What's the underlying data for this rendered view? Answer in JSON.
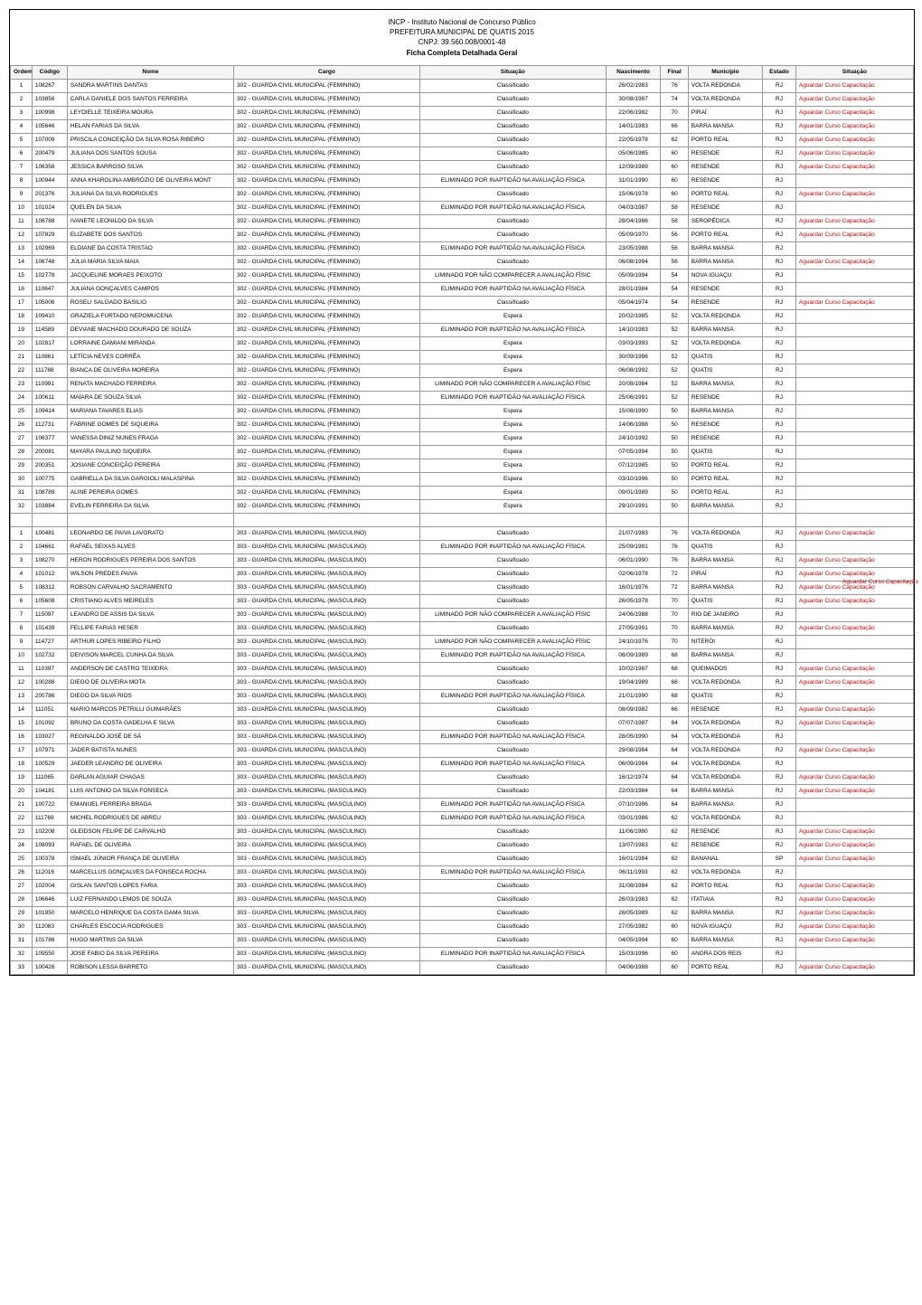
{
  "header": {
    "line1": "INCP - Instituto Nacional de Concurso Público",
    "line2": "PREFEITURA MUNICIPAL DE QUATIS 2015",
    "line3": "CNPJ: 39.560.008/0001-48",
    "line4": "Ficha Completa Detalhada Geral"
  },
  "side_note": "Aguardar Curso Capacitação",
  "columns": [
    "Ordem",
    "Código",
    "Nome",
    "Cargo",
    "Situação",
    "Nascimento",
    "Final",
    "Município",
    "Estado",
    "Situação"
  ],
  "cargo_f": "302 - GUARDA CIVIL MUNICIPAL (FEMININO)",
  "cargo_m": "303 - GUARDA CIVIL MUNICIPAL (MASCULINO)",
  "sit_class": "Classificado",
  "sit_espera": "Espera",
  "sit_elim_inapt": "ELIMINADO POR INAPTIDÃO NA AVALIAÇÃO FÍSICA",
  "sit_elim_nao_comp": "LIMINADO POR NÃO COMPARECER A AVALIAÇÃO FÍSIC",
  "aguardar": "Aguardar Curso Capacitação",
  "rows_f": [
    {
      "o": "1",
      "c": "108267",
      "n": "SANDRA MARTINS DANTAS",
      "s": "class",
      "d": "26/02/1983",
      "f": "76",
      "m": "VOLTA REDONDA",
      "e": "RJ",
      "s2": true
    },
    {
      "o": "2",
      "c": "103856",
      "n": "CARLA DANIELE DOS SANTOS FERREIRA",
      "s": "class",
      "d": "30/08/1987",
      "f": "74",
      "m": "VOLTA REDONDA",
      "e": "RJ",
      "s2": true
    },
    {
      "o": "3",
      "c": "100998",
      "n": "LEYDIELLE TEIXEIRA MOURA",
      "s": "class",
      "d": "22/06/1982",
      "f": "70",
      "m": "PIRAÍ",
      "e": "RJ",
      "s2": true
    },
    {
      "o": "4",
      "c": "105646",
      "n": "HELAN FARIAS DA SILVA",
      "s": "class",
      "d": "14/01/1983",
      "f": "66",
      "m": "BARRA MANSA",
      "e": "RJ",
      "s2": true
    },
    {
      "o": "5",
      "c": "107009",
      "n": "PRISCILA CONCEIÇÃO DA SILVA ROSA RIBEIRO",
      "s": "class",
      "d": "22/05/1978",
      "f": "62",
      "m": "PORTO REAL",
      "e": "RJ",
      "s2": true
    },
    {
      "o": "6",
      "c": "200479",
      "n": "JULIANA DOS SANTOS SOUSA",
      "s": "class",
      "d": "05/06/1985",
      "f": "60",
      "m": "RESENDE",
      "e": "RJ",
      "s2": true
    },
    {
      "o": "7",
      "c": "106358",
      "n": "JESSICA BARROSO SILVA",
      "s": "class",
      "d": "12/09/1989",
      "f": "60",
      "m": "RESENDE",
      "e": "RJ",
      "s2": true
    },
    {
      "o": "8",
      "c": "100944",
      "n": "ANNA KHAROLINA AMBRÓZIO DE OLIVEIRA MONT",
      "s": "elim_inapt",
      "d": "31/01/1990",
      "f": "60",
      "m": "RESENDE",
      "e": "RJ",
      "s2": false
    },
    {
      "o": "9",
      "c": "201376",
      "n": "JULIANA DA SILVA RODRIGUES",
      "s": "class",
      "d": "15/06/1978",
      "f": "60",
      "m": "PORTO REAL",
      "e": "RJ",
      "s2": true
    },
    {
      "o": "10",
      "c": "101024",
      "n": "QUELEN DA SILVA",
      "s": "elim_inapt",
      "d": "04/03/1987",
      "f": "58",
      "m": "RESENDE",
      "e": "RJ",
      "s2": false
    },
    {
      "o": "11",
      "c": "108788",
      "n": "IVANETE LEONILDO DA SILVA",
      "s": "class",
      "d": "28/04/1986",
      "f": "58",
      "m": "SEROPÉDICA",
      "e": "RJ",
      "s2": true
    },
    {
      "o": "12",
      "c": "107829",
      "n": "ELIZABETE DOS SANTOS",
      "s": "class",
      "d": "05/09/1970",
      "f": "56",
      "m": "PORTO REAL",
      "e": "RJ",
      "s2": true
    },
    {
      "o": "13",
      "c": "102969",
      "n": "ELDIANE DA COSTA TRISTAO",
      "s": "elim_inapt",
      "d": "23/05/1988",
      "f": "56",
      "m": "BARRA MANSA",
      "e": "RJ",
      "s2": false
    },
    {
      "o": "14",
      "c": "106748",
      "n": "JÚLIA MARIA SILVA MAIA",
      "s": "class",
      "d": "06/08/1994",
      "f": "56",
      "m": "BARRA MANSA",
      "e": "RJ",
      "s2": true
    },
    {
      "o": "15",
      "c": "102778",
      "n": "JACQUELINE MORAES PEIXOTO",
      "s": "elim_nao",
      "d": "05/09/1994",
      "f": "54",
      "m": "NOVA IGUAÇU",
      "e": "RJ",
      "s2": false
    },
    {
      "o": "16",
      "c": "110647",
      "n": "JULIANA GONÇALVES CAMPOS",
      "s": "elim_inapt",
      "d": "28/01/1984",
      "f": "54",
      "m": "RESENDE",
      "e": "RJ",
      "s2": false
    },
    {
      "o": "17",
      "c": "105006",
      "n": "ROSELI SALGADO BASILIO",
      "s": "class",
      "d": "05/04/1974",
      "f": "54",
      "m": "RESENDE",
      "e": "RJ",
      "s2": true
    },
    {
      "o": "18",
      "c": "109410",
      "n": "GRAZIELA FURTADO NEPOMUCENA",
      "s": "espera",
      "d": "20/02/1985",
      "f": "52",
      "m": "VOLTA REDONDA",
      "e": "RJ",
      "s2": false
    },
    {
      "o": "19",
      "c": "114589",
      "n": "DEVIANE MACHADO DOURADO DE SOUZA",
      "s": "elim_inapt",
      "d": "14/10/1983",
      "f": "52",
      "m": "BARRA MANSA",
      "e": "RJ",
      "s2": false
    },
    {
      "o": "20",
      "c": "102817",
      "n": "LORRAINE DAMIANI MIRANDA",
      "s": "espera",
      "d": "03/03/1993",
      "f": "52",
      "m": "VOLTA REDONDA",
      "e": "RJ",
      "s2": false
    },
    {
      "o": "21",
      "c": "110861",
      "n": "LETÍCIA NEVES CORRÊA",
      "s": "espera",
      "d": "30/09/1996",
      "f": "52",
      "m": "QUATIS",
      "e": "RJ",
      "s2": false
    },
    {
      "o": "22",
      "c": "111788",
      "n": "BIANCA DE OLIVEIRA MOREIRA",
      "s": "espera",
      "d": "06/08/1992",
      "f": "52",
      "m": "QUATIS",
      "e": "RJ",
      "s2": false
    },
    {
      "o": "23",
      "c": "110991",
      "n": "RENATA MACHADO FERREIRA",
      "s": "elim_nao",
      "d": "20/08/1984",
      "f": "52",
      "m": "BARRA MANSA",
      "e": "RJ",
      "s2": false
    },
    {
      "o": "24",
      "c": "100611",
      "n": "MAÍARA DE SOUZA SILVA",
      "s": "elim_inapt",
      "d": "25/06/1991",
      "f": "52",
      "m": "RESENDE",
      "e": "RJ",
      "s2": false
    },
    {
      "o": "25",
      "c": "109414",
      "n": "MARIANA TAVARES ELIAS",
      "s": "espera",
      "d": "15/08/1990",
      "f": "50",
      "m": "BARRA MANSA",
      "e": "RJ",
      "s2": false
    },
    {
      "o": "26",
      "c": "112731",
      "n": "FABRINE GOMES DE SIQUEIRA",
      "s": "espera",
      "d": "14/06/1988",
      "f": "50",
      "m": "RESENDE",
      "e": "RJ",
      "s2": false
    },
    {
      "o": "27",
      "c": "106377",
      "n": "VANESSA DINIZ NUNES FRAGA",
      "s": "espera",
      "d": "24/10/1992",
      "f": "50",
      "m": "RESENDE",
      "e": "RJ",
      "s2": false
    },
    {
      "o": "28",
      "c": "200081",
      "n": "MAYARA PAULINO SIQUEIRA",
      "s": "espera",
      "d": "07/05/1994",
      "f": "50",
      "m": "QUATIS",
      "e": "RJ",
      "s2": false
    },
    {
      "o": "29",
      "c": "200351",
      "n": "JOSIANE CONCEIÇÃO PEREIRA",
      "s": "espera",
      "d": "07/12/1985",
      "f": "50",
      "m": "PORTO REAL",
      "e": "RJ",
      "s2": false
    },
    {
      "o": "30",
      "c": "100775",
      "n": "GABRIELLA DA SILVA GARGIOLI MALASPINA",
      "s": "espera",
      "d": "03/10/1996",
      "f": "50",
      "m": "PORTO REAL",
      "e": "RJ",
      "s2": false
    },
    {
      "o": "31",
      "c": "108789",
      "n": "ALINE PEREIRA GOMES",
      "s": "espera",
      "d": "09/01/1989",
      "f": "50",
      "m": "PORTO REAL",
      "e": "RJ",
      "s2": false
    },
    {
      "o": "32",
      "c": "103884",
      "n": "EVELIN FERREIRA DA SILVA",
      "s": "espera",
      "d": "29/10/1991",
      "f": "50",
      "m": "BARRA MANSA",
      "e": "RJ",
      "s2": false
    }
  ],
  "rows_m": [
    {
      "o": "1",
      "c": "100481",
      "n": "LEONARDO DE PAIVA LAVORATO",
      "s": "class",
      "d": "21/07/1983",
      "f": "76",
      "m": "VOLTA REDONDA",
      "e": "RJ",
      "s2": true
    },
    {
      "o": "2",
      "c": "104661",
      "n": "RAFAEL SEIXAS ALVES",
      "s": "elim_inapt",
      "d": "25/09/1981",
      "f": "76",
      "m": "QUATIS",
      "e": "RJ",
      "s2": false
    },
    {
      "o": "3",
      "c": "108270",
      "n": "HERON RODRIGUES PEREIRA DOS SANTOS",
      "s": "class",
      "d": "06/01/1990",
      "f": "76",
      "m": "BARRA MANSA",
      "e": "RJ",
      "s2": true
    },
    {
      "o": "4",
      "c": "101012",
      "n": "WILSON PREDES PAIVA",
      "s": "class",
      "d": "02/06/1978",
      "f": "72",
      "m": "PIRAÍ",
      "e": "RJ",
      "s2": true
    },
    {
      "o": "5",
      "c": "108312",
      "n": "ROBSON CARVALHO SACRAMENTO",
      "s": "class",
      "d": "16/01/1976",
      "f": "72",
      "m": "BARRA MANSA",
      "e": "RJ",
      "s2": true
    },
    {
      "o": "6",
      "c": "105608",
      "n": "CRISTIANO ALVES MEIRELES",
      "s": "class",
      "d": "26/05/1978",
      "f": "70",
      "m": "QUATIS",
      "e": "RJ",
      "s2": true
    },
    {
      "o": "7",
      "c": "115097",
      "n": "LEANDRO DE ASSIS DA SILVA",
      "s": "elim_nao",
      "d": "24/06/1988",
      "f": "70",
      "m": "RIO DE JANEIRO",
      "e": "RJ",
      "s2": false
    },
    {
      "o": "8",
      "c": "101439",
      "n": "FELLIPE FARIAS HESER",
      "s": "class",
      "d": "27/05/1991",
      "f": "70",
      "m": "BARRA MANSA",
      "e": "RJ",
      "s2": true
    },
    {
      "o": "9",
      "c": "114727",
      "n": "ARTHUR LOPES RIBEIRO FILHO",
      "s": "elim_nao",
      "d": "24/10/1976",
      "f": "70",
      "m": "NITERÓI",
      "e": "RJ",
      "s2": false
    },
    {
      "o": "10",
      "c": "102732",
      "n": "DEIVISON MARCEL CUNHA DA SILVA",
      "s": "elim_inapt",
      "d": "08/09/1989",
      "f": "68",
      "m": "BARRA MANSA",
      "e": "RJ",
      "s2": false
    },
    {
      "o": "11",
      "c": "110397",
      "n": "ANDERSON DE CASTRO TEIXEIRA",
      "s": "class",
      "d": "10/02/1987",
      "f": "68",
      "m": "QUEIMADOS",
      "e": "RJ",
      "s2": true
    },
    {
      "o": "12",
      "c": "100288",
      "n": "DIEGO DE OLIVEIRA MOTA",
      "s": "class",
      "d": "19/04/1989",
      "f": "68",
      "m": "VOLTA REDONDA",
      "e": "RJ",
      "s2": true
    },
    {
      "o": "13",
      "c": "200786",
      "n": "DIEGO DA SILVA RIOS",
      "s": "elim_inapt",
      "d": "21/01/1990",
      "f": "68",
      "m": "QUATIS",
      "e": "RJ",
      "s2": false
    },
    {
      "o": "14",
      "c": "111051",
      "n": "MARIO MARCOS PETRILLI GUIMARÃES",
      "s": "class",
      "d": "08/09/1982",
      "f": "66",
      "m": "RESENDE",
      "e": "RJ",
      "s2": true
    },
    {
      "o": "15",
      "c": "101092",
      "n": "BRUNO DA COSTA GADELHA E SILVA",
      "s": "class",
      "d": "07/07/1987",
      "f": "64",
      "m": "VOLTA REDONDA",
      "e": "RJ",
      "s2": true
    },
    {
      "o": "16",
      "c": "103027",
      "n": "REGINALDO JOSÉ DE SÁ",
      "s": "elim_inapt",
      "d": "28/05/1990",
      "f": "64",
      "m": "VOLTA REDONDA",
      "e": "RJ",
      "s2": false
    },
    {
      "o": "17",
      "c": "107971",
      "n": "JADER BATISTA NUNES",
      "s": "class",
      "d": "29/08/1984",
      "f": "64",
      "m": "VOLTA REDONDA",
      "e": "RJ",
      "s2": true
    },
    {
      "o": "18",
      "c": "100529",
      "n": "JAEDER LEANDRO DE OLIVEIRA",
      "s": "elim_inapt",
      "d": "06/09/1984",
      "f": "64",
      "m": "VOLTA REDONDA",
      "e": "RJ",
      "s2": false
    },
    {
      "o": "19",
      "c": "111065",
      "n": "DARLAN AGUIAR CHAGAS",
      "s": "class",
      "d": "16/12/1974",
      "f": "64",
      "m": "VOLTA REDONDA",
      "e": "RJ",
      "s2": true
    },
    {
      "o": "20",
      "c": "104181",
      "n": "LUIS ANTONIO DA SILVA FONSECA",
      "s": "class",
      "d": "22/03/1984",
      "f": "64",
      "m": "BARRA MANSA",
      "e": "RJ",
      "s2": true
    },
    {
      "o": "21",
      "c": "100722",
      "n": "EMANUEL FERREIRA BRAGA",
      "s": "elim_inapt",
      "d": "07/10/1996",
      "f": "64",
      "m": "BARRA MANSA",
      "e": "RJ",
      "s2": false
    },
    {
      "o": "22",
      "c": "111769",
      "n": "MICHEL RODRIGUES DE ABREU",
      "s": "elim_inapt",
      "d": "03/01/1986",
      "f": "62",
      "m": "VOLTA REDONDA",
      "e": "RJ",
      "s2": false
    },
    {
      "o": "23",
      "c": "102208",
      "n": "GLEIDSON FELIPE DE CARVALHO",
      "s": "class",
      "d": "11/06/1980",
      "f": "62",
      "m": "RESENDE",
      "e": "RJ",
      "s2": true
    },
    {
      "o": "24",
      "c": "108093",
      "n": "RAFAEL DE OLIVEIRA",
      "s": "class",
      "d": "13/07/1983",
      "f": "62",
      "m": "RESENDE",
      "e": "RJ",
      "s2": true
    },
    {
      "o": "25",
      "c": "100378",
      "n": "ISMAEL JÚNIOR FRANÇA DE OLIVEIRA",
      "s": "class",
      "d": "16/01/1984",
      "f": "62",
      "m": "BANANAL",
      "e": "SP",
      "s2": true
    },
    {
      "o": "26",
      "c": "112016",
      "n": "MARCELLUS GONÇALVES DA FONSECA ROCHA",
      "s": "elim_inapt",
      "d": "06/11/1993",
      "f": "62",
      "m": "VOLTA REDONDA",
      "e": "RJ",
      "s2": false
    },
    {
      "o": "27",
      "c": "102004",
      "n": "GISLAN SANTOS LOPES FARIA",
      "s": "class",
      "d": "31/08/1984",
      "f": "62",
      "m": "PORTO REAL",
      "e": "RJ",
      "s2": true
    },
    {
      "o": "28",
      "c": "106646",
      "n": "LUIZ FERNANDO LEMOS DE SOUZA",
      "s": "class",
      "d": "26/03/1983",
      "f": "62",
      "m": "ITATIAIA",
      "e": "RJ",
      "s2": true
    },
    {
      "o": "29",
      "c": "101950",
      "n": "MARCELO HENRIQUE DA COSTA GAMA SILVA",
      "s": "class",
      "d": "26/05/1989",
      "f": "62",
      "m": "BARRA MANSA",
      "e": "RJ",
      "s2": true
    },
    {
      "o": "30",
      "c": "112083",
      "n": "CHARLES ESCOCIA RODRIGUES",
      "s": "class",
      "d": "27/05/1982",
      "f": "60",
      "m": "NOVA IGUAÇU",
      "e": "RJ",
      "s2": true
    },
    {
      "o": "31",
      "c": "101786",
      "n": "HUGO MARTINS DA SILVA",
      "s": "class",
      "d": "04/05/1994",
      "f": "60",
      "m": "BARRA MANSA",
      "e": "RJ",
      "s2": true
    },
    {
      "o": "32",
      "c": "109550",
      "n": "JOSE FABIO DA SILVA PEREIRA",
      "s": "elim_inapt",
      "d": "15/03/1996",
      "f": "60",
      "m": "ANGRA DOS REIS",
      "e": "RJ",
      "s2": false
    },
    {
      "o": "33",
      "c": "100426",
      "n": "ROBISON LESSA BARRETO",
      "s": "class",
      "d": "04/06/1988",
      "f": "60",
      "m": "PORTO REAL",
      "e": "RJ",
      "s2": true
    }
  ]
}
